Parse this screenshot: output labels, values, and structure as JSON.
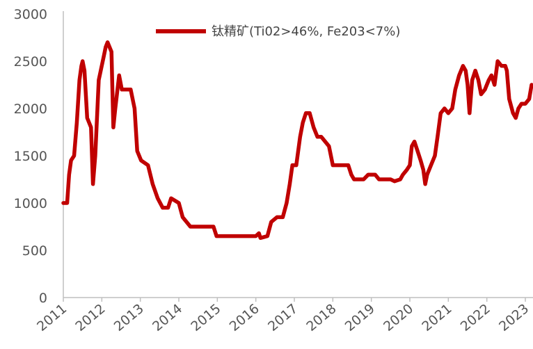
{
  "chart_data": {
    "type": "line",
    "title": "",
    "xlabel": "",
    "ylabel": "",
    "ylim": [
      0,
      3000
    ],
    "xlim": [
      2011,
      2023.2
    ],
    "yticks": [
      "0",
      "500",
      "1000",
      "1500",
      "2000",
      "2500",
      "3000"
    ],
    "xticks": [
      "2011",
      "2012",
      "2013",
      "2014",
      "2015",
      "2016",
      "2017",
      "2018",
      "2019",
      "2020",
      "2021",
      "2022",
      "2023"
    ],
    "legend_position": "top",
    "grid": false,
    "colors": {
      "series": "#c00000",
      "axis": "#bfbfbf"
    },
    "series": [
      {
        "name": "钛精矿(Ti02>46%, Fe203<7%)",
        "points": [
          [
            2011.0,
            1000
          ],
          [
            2011.1,
            1000
          ],
          [
            2011.15,
            1300
          ],
          [
            2011.2,
            1450
          ],
          [
            2011.28,
            1500
          ],
          [
            2011.35,
            1850
          ],
          [
            2011.42,
            2300
          ],
          [
            2011.47,
            2450
          ],
          [
            2011.5,
            2500
          ],
          [
            2011.55,
            2400
          ],
          [
            2011.62,
            1900
          ],
          [
            2011.72,
            1800
          ],
          [
            2011.77,
            1200
          ],
          [
            2011.83,
            1500
          ],
          [
            2011.92,
            2300
          ],
          [
            2012.05,
            2550
          ],
          [
            2012.1,
            2650
          ],
          [
            2012.15,
            2700
          ],
          [
            2012.25,
            2600
          ],
          [
            2012.3,
            1800
          ],
          [
            2012.35,
            2000
          ],
          [
            2012.45,
            2350
          ],
          [
            2012.52,
            2200
          ],
          [
            2012.6,
            2200
          ],
          [
            2012.75,
            2200
          ],
          [
            2012.85,
            2000
          ],
          [
            2012.92,
            1550
          ],
          [
            2013.02,
            1450
          ],
          [
            2013.2,
            1400
          ],
          [
            2013.32,
            1200
          ],
          [
            2013.45,
            1050
          ],
          [
            2013.58,
            950
          ],
          [
            2013.72,
            950
          ],
          [
            2013.8,
            1050
          ],
          [
            2014.0,
            1000
          ],
          [
            2014.1,
            850
          ],
          [
            2014.2,
            800
          ],
          [
            2014.3,
            750
          ],
          [
            2014.6,
            750
          ],
          [
            2014.9,
            750
          ],
          [
            2014.98,
            650
          ],
          [
            2015.5,
            650
          ],
          [
            2016.0,
            650
          ],
          [
            2016.08,
            680
          ],
          [
            2016.12,
            630
          ],
          [
            2016.3,
            650
          ],
          [
            2016.4,
            800
          ],
          [
            2016.55,
            850
          ],
          [
            2016.7,
            850
          ],
          [
            2016.8,
            1000
          ],
          [
            2016.88,
            1200
          ],
          [
            2016.95,
            1400
          ],
          [
            2017.05,
            1400
          ],
          [
            2017.15,
            1700
          ],
          [
            2017.22,
            1850
          ],
          [
            2017.3,
            1950
          ],
          [
            2017.4,
            1950
          ],
          [
            2017.5,
            1800
          ],
          [
            2017.6,
            1700
          ],
          [
            2017.7,
            1700
          ],
          [
            2017.8,
            1650
          ],
          [
            2017.9,
            1600
          ],
          [
            2018.0,
            1400
          ],
          [
            2018.2,
            1400
          ],
          [
            2018.4,
            1400
          ],
          [
            2018.48,
            1300
          ],
          [
            2018.55,
            1250
          ],
          [
            2018.8,
            1250
          ],
          [
            2018.92,
            1300
          ],
          [
            2019.1,
            1300
          ],
          [
            2019.2,
            1250
          ],
          [
            2019.35,
            1250
          ],
          [
            2019.5,
            1250
          ],
          [
            2019.6,
            1230
          ],
          [
            2019.75,
            1250
          ],
          [
            2019.82,
            1300
          ],
          [
            2019.92,
            1350
          ],
          [
            2020.0,
            1400
          ],
          [
            2020.05,
            1600
          ],
          [
            2020.12,
            1650
          ],
          [
            2020.2,
            1550
          ],
          [
            2020.28,
            1450
          ],
          [
            2020.35,
            1350
          ],
          [
            2020.4,
            1200
          ],
          [
            2020.45,
            1300
          ],
          [
            2020.55,
            1400
          ],
          [
            2020.65,
            1500
          ],
          [
            2020.72,
            1700
          ],
          [
            2020.8,
            1950
          ],
          [
            2020.9,
            2000
          ],
          [
            2021.0,
            1950
          ],
          [
            2021.1,
            2000
          ],
          [
            2021.18,
            2200
          ],
          [
            2021.28,
            2350
          ],
          [
            2021.38,
            2450
          ],
          [
            2021.45,
            2400
          ],
          [
            2021.5,
            2250
          ],
          [
            2021.55,
            1950
          ],
          [
            2021.62,
            2300
          ],
          [
            2021.7,
            2400
          ],
          [
            2021.78,
            2300
          ],
          [
            2021.85,
            2150
          ],
          [
            2021.95,
            2200
          ],
          [
            2022.05,
            2300
          ],
          [
            2022.12,
            2350
          ],
          [
            2022.2,
            2250
          ],
          [
            2022.28,
            2500
          ],
          [
            2022.38,
            2450
          ],
          [
            2022.48,
            2450
          ],
          [
            2022.52,
            2400
          ],
          [
            2022.58,
            2100
          ],
          [
            2022.68,
            1950
          ],
          [
            2022.75,
            1900
          ],
          [
            2022.82,
            2000
          ],
          [
            2022.9,
            2050
          ],
          [
            2023.0,
            2050
          ],
          [
            2023.1,
            2100
          ],
          [
            2023.2,
            2250
          ]
        ]
      }
    ]
  }
}
